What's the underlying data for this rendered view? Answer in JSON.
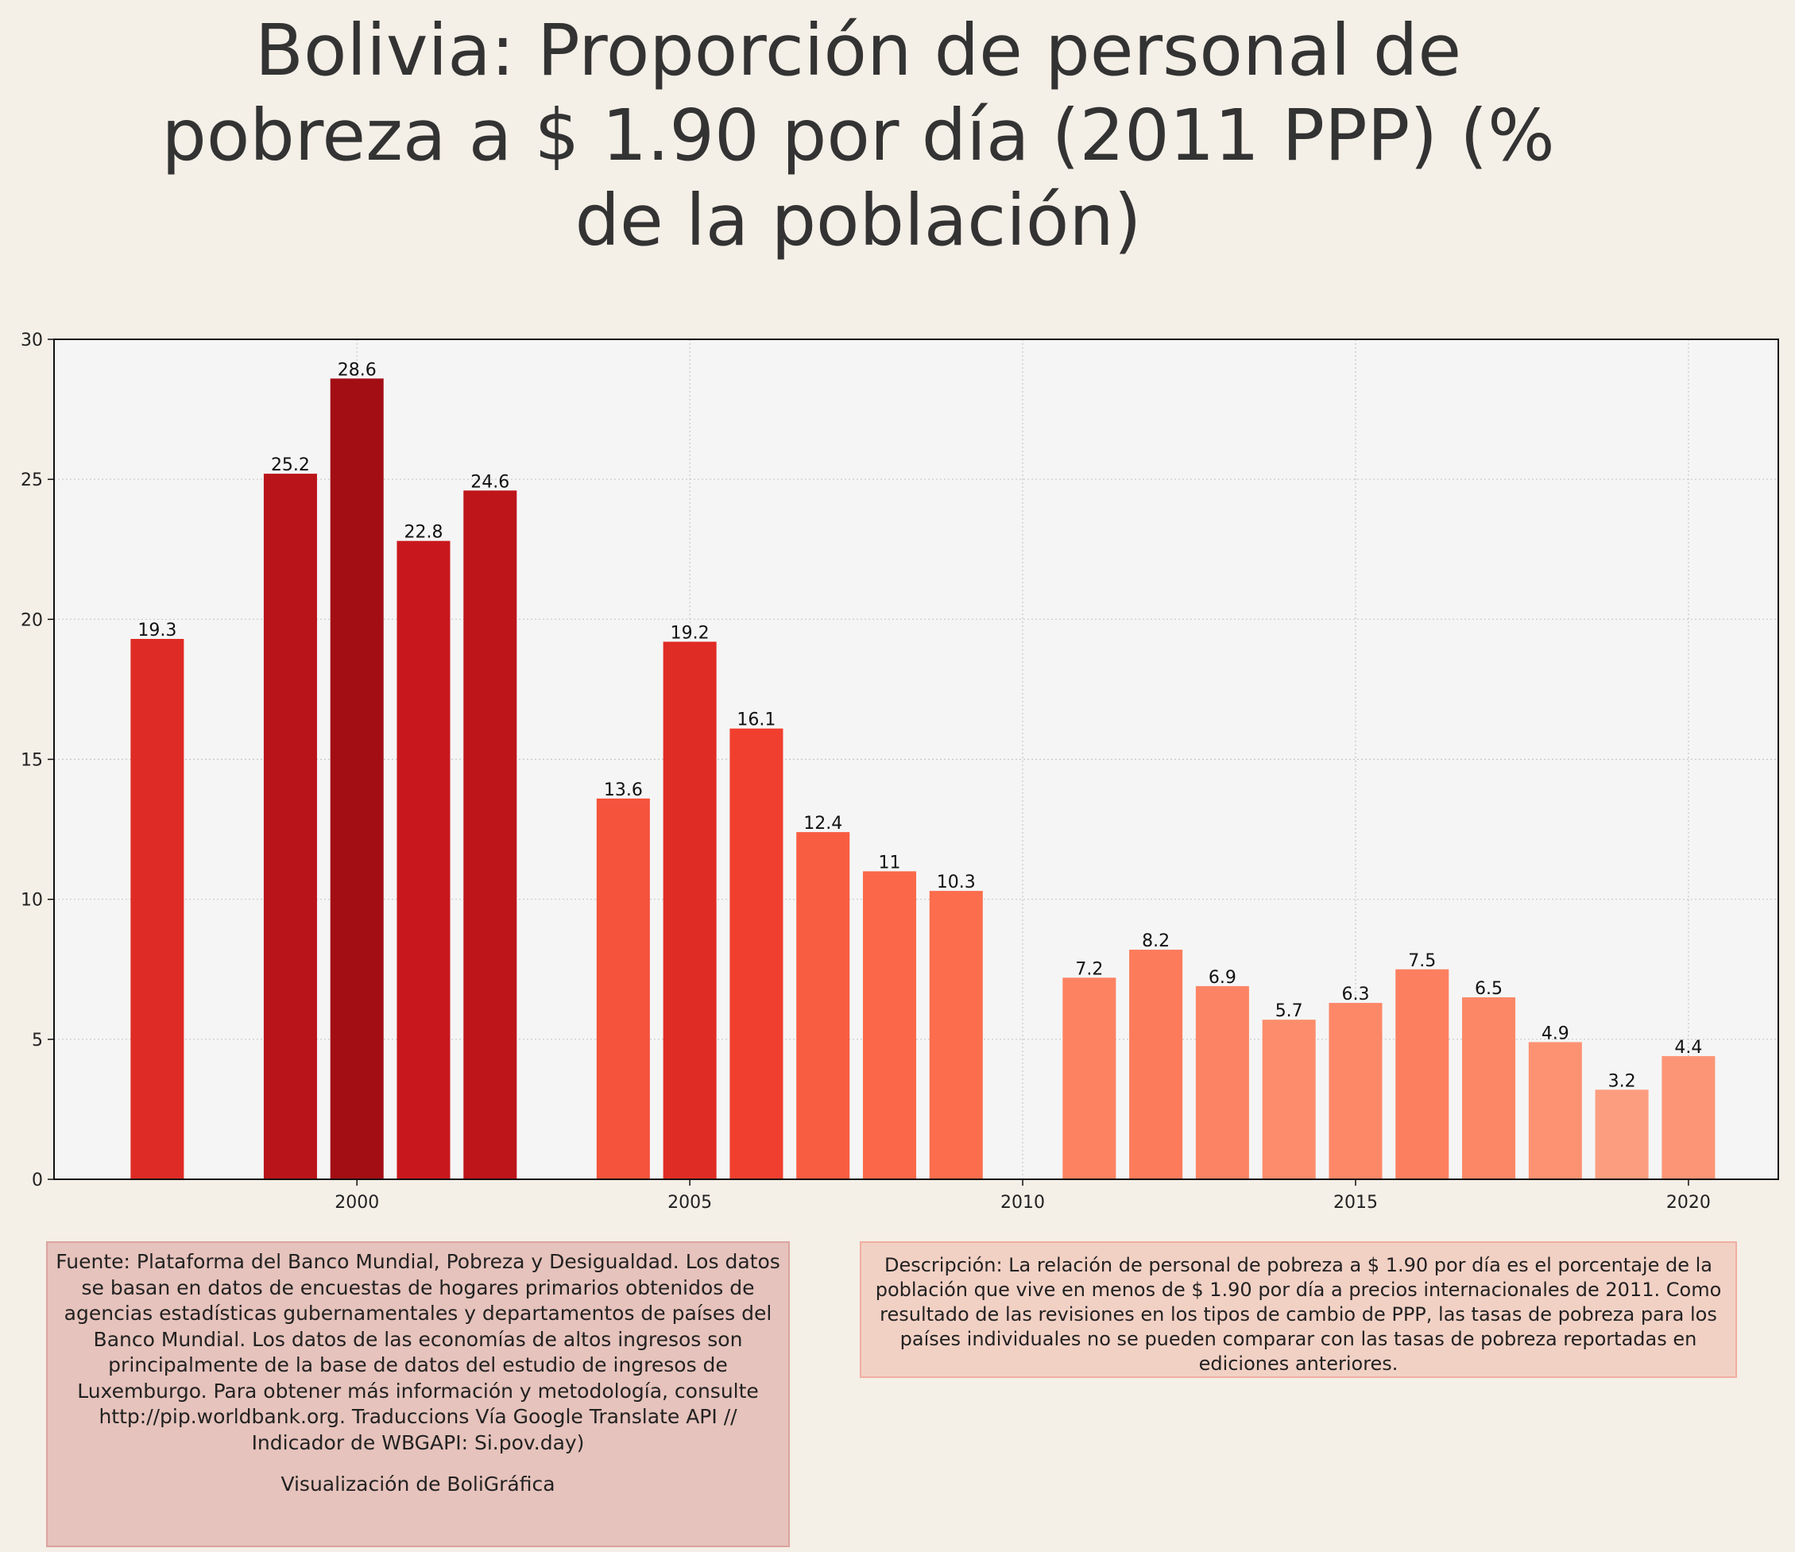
{
  "title": "Bolivia:  Proporción de personal de pobreza a $ 1.90 por día (2011 PPP) (% de la población)",
  "source_text": "Fuente: Plataforma del Banco Mundial, Pobreza y Desigualdad. Los datos se basan en datos de encuestas de hogares primarios obtenidos de agencias estadísticas gubernamentales y departamentos de países del Banco Mundial. Los datos de las economías de altos ingresos son principalmente de la base de datos del estudio de ingresos de Luxemburgo. Para obtener más información y metodología, consulte http://pip.worldbank.org. Traduccions Vía Google Translate API // Indicador de WBGAPI: Si.pov.day)",
  "credit_text": "Visualización de BoliGráfica",
  "description_text": "Descripción: La relación de personal de pobreza a $ 1.90 por día es el porcentaje de la población que vive en menos de $ 1.90 por día a precios internacionales de 2011. Como resultado de las revisiones en los tipos de cambio de PPP, las tasas de pobreza para los países individuales no se pueden comparar con las tasas de pobreza reportadas en ediciones anteriores.",
  "chart_data": {
    "type": "bar",
    "x": [
      1997,
      1999,
      2000,
      2001,
      2002,
      2004,
      2005,
      2006,
      2007,
      2008,
      2009,
      2011,
      2012,
      2013,
      2014,
      2015,
      2016,
      2017,
      2018,
      2019,
      2020
    ],
    "values": [
      19.3,
      25.2,
      28.6,
      22.8,
      24.6,
      13.6,
      19.2,
      16.1,
      12.4,
      11,
      10.3,
      7.2,
      8.2,
      6.9,
      5.7,
      6.3,
      7.5,
      6.5,
      4.9,
      3.2,
      4.4
    ],
    "value_labels": [
      "19.3",
      "25.2",
      "28.6",
      "22.8",
      "24.6",
      "13.6",
      "19.2",
      "16.1",
      "12.4",
      "11",
      "10.3",
      "7.2",
      "8.2",
      "6.9",
      "5.7",
      "6.3",
      "7.5",
      "6.5",
      "4.9",
      "3.2",
      "4.4"
    ],
    "xlim": [
      1995.45,
      2021.35
    ],
    "ylim": [
      0,
      30
    ],
    "xticks": [
      2000,
      2005,
      2010,
      2015,
      2020
    ],
    "yticks": [
      0,
      5,
      10,
      15,
      20,
      25,
      30
    ],
    "grid": true,
    "color_scale": "Reds by value",
    "colors": {
      "darkest": "#980c15",
      "lightest": "#fcab8f",
      "plot_background": "#f5f5f5",
      "page_background": "#f4efe7"
    }
  }
}
